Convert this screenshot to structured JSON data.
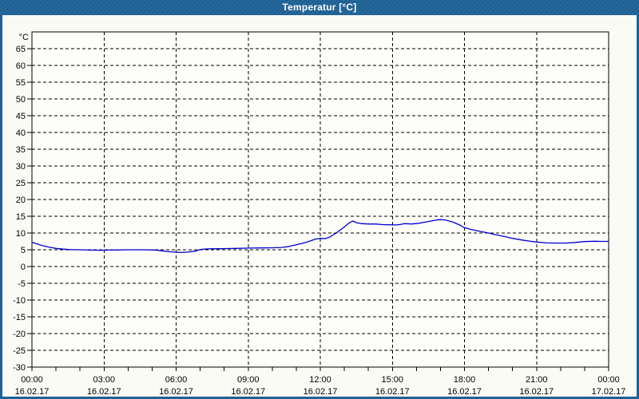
{
  "window": {
    "title": "Temperatur [°C]"
  },
  "colors": {
    "titlebar": "#1e6296",
    "frame": "#1e6296",
    "title_text": "#ffffff",
    "content_bg": "#fbfbf6",
    "plot_bg": "#fdfdfa",
    "axis": "#000000",
    "grid": "#000000",
    "label_text": "#000000",
    "curve": "#0000cd"
  },
  "chart_data": {
    "type": "line",
    "title": "Temperatur [°C]",
    "unit_label": "°C",
    "ylim": [
      -30,
      70
    ],
    "ytick_step": 5,
    "ytick_labels": [
      "65",
      "60",
      "55",
      "50",
      "45",
      "40",
      "35",
      "30",
      "25",
      "20",
      "15",
      "10",
      "5",
      "0",
      "-5",
      "-10",
      "-15",
      "-20",
      "-25",
      "-30"
    ],
    "ygrid_values": [
      65,
      60,
      55,
      50,
      45,
      40,
      35,
      30,
      25,
      20,
      15,
      10,
      5,
      0,
      -5,
      -10,
      -15,
      -20,
      -25
    ],
    "xlim_hours": [
      0,
      24
    ],
    "x_minor_tick_hours": 1,
    "xgrid_hours": [
      3,
      6,
      9,
      12,
      15,
      18,
      21
    ],
    "x_labels": [
      {
        "hour": 0,
        "time": "00:00",
        "date": "16.02.17"
      },
      {
        "hour": 3,
        "time": "03:00",
        "date": "16.02.17"
      },
      {
        "hour": 6,
        "time": "06:00",
        "date": "16.02.17"
      },
      {
        "hour": 9,
        "time": "09:00",
        "date": "16.02.17"
      },
      {
        "hour": 12,
        "time": "12:00",
        "date": "16.02.17"
      },
      {
        "hour": 15,
        "time": "15:00",
        "date": "16.02.17"
      },
      {
        "hour": 18,
        "time": "18:00",
        "date": "16.02.17"
      },
      {
        "hour": 21,
        "time": "21:00",
        "date": "16.02.17"
      },
      {
        "hour": 24,
        "time": "00:00",
        "date": "17.02.17"
      }
    ],
    "grid": true,
    "legend": "none",
    "series": [
      {
        "name": "Temperatur",
        "color": "#0000cd",
        "points": [
          [
            0,
            7.2
          ],
          [
            0.2,
            6.8
          ],
          [
            0.4,
            6.3
          ],
          [
            0.7,
            5.8
          ],
          [
            1,
            5.4
          ],
          [
            1.3,
            5.2
          ],
          [
            1.6,
            5.05
          ],
          [
            2,
            5.0
          ],
          [
            2.4,
            4.9
          ],
          [
            2.8,
            4.85
          ],
          [
            3.2,
            4.9
          ],
          [
            3.6,
            4.95
          ],
          [
            4,
            5.0
          ],
          [
            4.5,
            5.0
          ],
          [
            5,
            4.95
          ],
          [
            5.3,
            4.8
          ],
          [
            5.6,
            4.5
          ],
          [
            5.9,
            4.3
          ],
          [
            6.2,
            4.2
          ],
          [
            6.5,
            4.3
          ],
          [
            6.8,
            4.6
          ],
          [
            7,
            5.1
          ],
          [
            7.3,
            5.25
          ],
          [
            7.7,
            5.3
          ],
          [
            8.1,
            5.35
          ],
          [
            8.5,
            5.4
          ],
          [
            9,
            5.5
          ],
          [
            9.5,
            5.55
          ],
          [
            10,
            5.6
          ],
          [
            10.4,
            5.7
          ],
          [
            10.7,
            6.0
          ],
          [
            11,
            6.5
          ],
          [
            11.3,
            7.0
          ],
          [
            11.6,
            7.7
          ],
          [
            11.8,
            8.2
          ],
          [
            12,
            8.4
          ],
          [
            12.2,
            8.3
          ],
          [
            12.4,
            8.8
          ],
          [
            12.7,
            10.2
          ],
          [
            13,
            11.8
          ],
          [
            13.2,
            13.0
          ],
          [
            13.35,
            13.6
          ],
          [
            13.5,
            13.1
          ],
          [
            13.7,
            12.8
          ],
          [
            14,
            12.7
          ],
          [
            14.3,
            12.7
          ],
          [
            14.6,
            12.5
          ],
          [
            14.9,
            12.45
          ],
          [
            15.1,
            12.4
          ],
          [
            15.3,
            12.5
          ],
          [
            15.5,
            12.8
          ],
          [
            15.8,
            12.7
          ],
          [
            16.1,
            12.9
          ],
          [
            16.4,
            13.3
          ],
          [
            16.7,
            13.7
          ],
          [
            16.95,
            14.0
          ],
          [
            17.2,
            13.9
          ],
          [
            17.5,
            13.3
          ],
          [
            17.8,
            12.4
          ],
          [
            18,
            11.6
          ],
          [
            18.3,
            11.0
          ],
          [
            18.7,
            10.4
          ],
          [
            19,
            10.0
          ],
          [
            19.3,
            9.5
          ],
          [
            19.7,
            8.9
          ],
          [
            20,
            8.4
          ],
          [
            20.4,
            7.9
          ],
          [
            20.7,
            7.6
          ],
          [
            21,
            7.3
          ],
          [
            21.4,
            7.05
          ],
          [
            21.8,
            7.0
          ],
          [
            22.2,
            7.0
          ],
          [
            22.6,
            7.2
          ],
          [
            23,
            7.45
          ],
          [
            23.4,
            7.55
          ],
          [
            23.7,
            7.5
          ],
          [
            24,
            7.5
          ]
        ]
      }
    ]
  }
}
